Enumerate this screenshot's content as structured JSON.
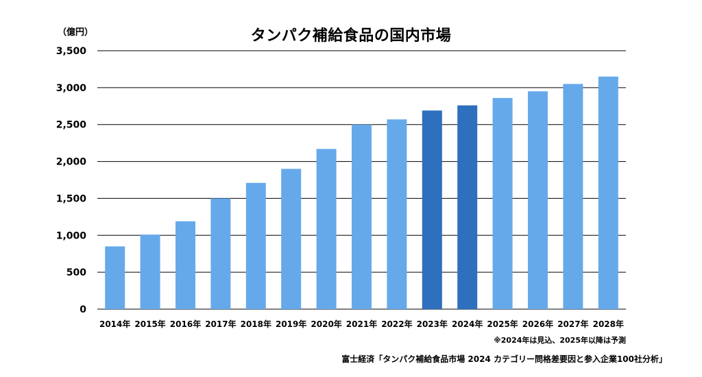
{
  "chart_data": {
    "type": "bar",
    "title": "タンパク補給食品の国内市場",
    "ylabel": "（億円）",
    "xlabel": "",
    "categories": [
      "2014年",
      "2015年",
      "2016年",
      "2017年",
      "2018年",
      "2019年",
      "2020年",
      "2021年",
      "2022年",
      "2023年",
      "2024年",
      "2025年",
      "2026年",
      "2027年",
      "2028年"
    ],
    "values": [
      850,
      1010,
      1190,
      1500,
      1710,
      1900,
      2170,
      2500,
      2570,
      2690,
      2760,
      2860,
      2950,
      3050,
      3150
    ],
    "ylim": [
      0,
      3500
    ],
    "yticks": [
      0,
      500,
      1000,
      1500,
      2000,
      2500,
      3000,
      3500
    ],
    "ytick_labels": [
      "0",
      "500",
      "1,000",
      "1,500",
      "2,000",
      "2,500",
      "3,000",
      "3,500"
    ],
    "grid": true,
    "colors": {
      "default": "#66A9EB",
      "highlight": "#2E6FBE",
      "gridline": "#000000"
    },
    "highlighted_categories": [
      "2023年",
      "2024年"
    ],
    "note": "※2024年は見込、2025年以降は予測",
    "source": "富士経済「タンパク補給食品市場 2024 カテゴリー問格差要因と参入企業100社分析」"
  }
}
